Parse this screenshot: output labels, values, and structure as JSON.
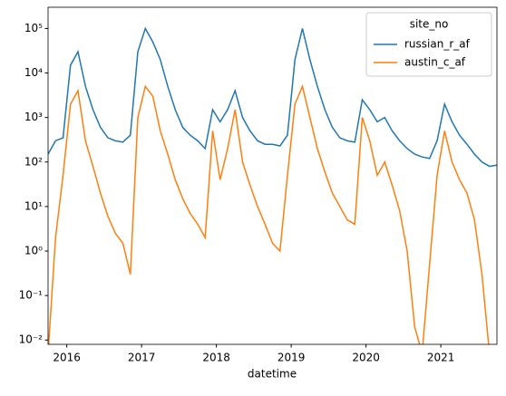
{
  "chart_data": {
    "type": "line",
    "xlabel": "datetime",
    "log_y": true,
    "legend_title": "site_no",
    "legend_loc": "upper right",
    "xlim": [
      2015.75,
      2021.75
    ],
    "ylim": [
      0.008,
      300000
    ],
    "xticks": [
      2016,
      2017,
      2018,
      2019,
      2020,
      2021
    ],
    "yticks": [
      {
        "value": 0.01,
        "label": "10⁻²"
      },
      {
        "value": 0.1,
        "label": "10⁻¹"
      },
      {
        "value": 1,
        "label": "10⁰"
      },
      {
        "value": 10,
        "label": "10¹"
      },
      {
        "value": 100,
        "label": "10²"
      },
      {
        "value": 1000,
        "label": "10³"
      },
      {
        "value": 10000,
        "label": "10⁴"
      },
      {
        "value": 100000,
        "label": "10⁵"
      }
    ],
    "x": [
      2015.75,
      2015.85,
      2015.95,
      2016.05,
      2016.15,
      2016.25,
      2016.35,
      2016.45,
      2016.55,
      2016.65,
      2016.75,
      2016.85,
      2016.95,
      2017.05,
      2017.15,
      2017.25,
      2017.35,
      2017.45,
      2017.55,
      2017.65,
      2017.75,
      2017.85,
      2017.95,
      2018.05,
      2018.15,
      2018.25,
      2018.35,
      2018.45,
      2018.55,
      2018.65,
      2018.75,
      2018.85,
      2018.95,
      2019.05,
      2019.15,
      2019.25,
      2019.35,
      2019.45,
      2019.55,
      2019.65,
      2019.75,
      2019.85,
      2019.95,
      2020.05,
      2020.15,
      2020.25,
      2020.35,
      2020.45,
      2020.55,
      2020.65,
      2020.75,
      2020.85,
      2020.95,
      2021.05,
      2021.15,
      2021.25,
      2021.35,
      2021.45,
      2021.55,
      2021.65,
      2021.75
    ],
    "series": [
      {
        "name": "russian_r_af",
        "color": "#1f77b4",
        "values": [
          150,
          300,
          350,
          15000,
          30000,
          5000,
          1500,
          600,
          350,
          300,
          280,
          400,
          30000,
          100000,
          50000,
          20000,
          5000,
          1500,
          600,
          400,
          300,
          200,
          1500,
          800,
          1500,
          4000,
          1000,
          500,
          300,
          250,
          250,
          230,
          400,
          20000,
          100000,
          20000,
          5000,
          1500,
          600,
          350,
          300,
          280,
          2500,
          1500,
          800,
          1000,
          500,
          300,
          200,
          150,
          130,
          120,
          300,
          2000,
          800,
          400,
          250,
          150,
          100,
          80,
          85
        ]
      },
      {
        "name": "austin_c_af",
        "color": "#ff7f0e",
        "values": [
          0.005,
          2,
          50,
          2000,
          4000,
          300,
          80,
          20,
          6,
          2.5,
          1.5,
          0.3,
          1000,
          5000,
          3000,
          500,
          150,
          40,
          15,
          7,
          4,
          2,
          500,
          40,
          200,
          1500,
          100,
          30,
          10,
          4,
          1.5,
          1,
          50,
          2000,
          5000,
          1000,
          200,
          60,
          20,
          10,
          5,
          4,
          1000,
          300,
          50,
          100,
          30,
          8,
          1,
          0.02,
          0.005,
          0.5,
          50,
          500,
          100,
          40,
          20,
          5,
          0.3,
          0.005,
          0.005
        ]
      }
    ]
  }
}
